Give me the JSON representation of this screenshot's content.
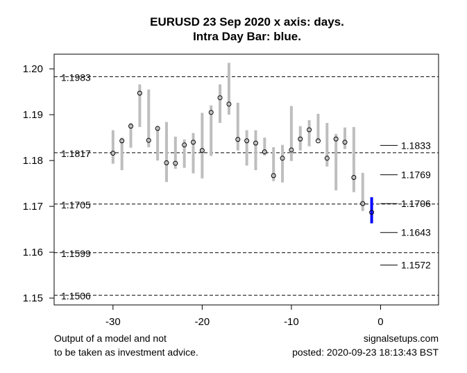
{
  "chart_data": {
    "type": "range-bar",
    "title_lines": [
      "EURUSD 23 Sep 2020 x axis: days.",
      "Intra Day Bar: blue."
    ],
    "xlabel": "",
    "ylabel": "",
    "xlim": [
      -36.6,
      6.5
    ],
    "ylim": [
      1.1485,
      1.2032
    ],
    "x_ticks": [
      -30,
      -20,
      -10,
      0
    ],
    "x_tick_labels": [
      "-30",
      "-20",
      "-10",
      "0"
    ],
    "y_ticks": [
      1.2,
      1.19,
      1.18,
      1.17,
      1.16,
      1.15
    ],
    "y_tick_labels": [
      "1.20",
      "1.19",
      "1.18",
      "1.17",
      "1.16",
      "1.15"
    ],
    "grid": false,
    "colors": {
      "daily_bar": "#bebebe",
      "intraday_bar": "#0000ff",
      "levels": "#000000"
    },
    "daily_bars": [
      {
        "day": -30,
        "high": 1.1866,
        "low": 1.1793,
        "close": 1.1816
      },
      {
        "day": -29,
        "high": 1.185,
        "low": 1.1779,
        "close": 1.1843
      },
      {
        "day": -28,
        "high": 1.1882,
        "low": 1.1828,
        "close": 1.1875
      },
      {
        "day": -27,
        "high": 1.1966,
        "low": 1.1873,
        "close": 1.1947
      },
      {
        "day": -26,
        "high": 1.1955,
        "low": 1.1829,
        "close": 1.1844
      },
      {
        "day": -25,
        "high": 1.1875,
        "low": 1.18,
        "close": 1.187
      },
      {
        "day": -24,
        "high": 1.1884,
        "low": 1.1753,
        "close": 1.1795
      },
      {
        "day": -23,
        "high": 1.1852,
        "low": 1.1782,
        "close": 1.1794
      },
      {
        "day": -22,
        "high": 1.1846,
        "low": 1.1784,
        "close": 1.1834
      },
      {
        "day": -21,
        "high": 1.186,
        "low": 1.1772,
        "close": 1.184
      },
      {
        "day": -20,
        "high": 1.1904,
        "low": 1.1761,
        "close": 1.1822
      },
      {
        "day": -19,
        "high": 1.192,
        "low": 1.181,
        "close": 1.1905
      },
      {
        "day": -18,
        "high": 1.1966,
        "low": 1.1882,
        "close": 1.1937
      },
      {
        "day": -17,
        "high": 1.2013,
        "low": 1.19,
        "close": 1.1923
      },
      {
        "day": -16,
        "high": 1.1926,
        "low": 1.1822,
        "close": 1.1846
      },
      {
        "day": -15,
        "high": 1.1866,
        "low": 1.1789,
        "close": 1.1843
      },
      {
        "day": -14,
        "high": 1.1866,
        "low": 1.1779,
        "close": 1.1838
      },
      {
        "day": -13,
        "high": 1.185,
        "low": 1.1811,
        "close": 1.1819
      },
      {
        "day": -12,
        "high": 1.1829,
        "low": 1.1755,
        "close": 1.1767
      },
      {
        "day": -11,
        "high": 1.1834,
        "low": 1.1752,
        "close": 1.1805
      },
      {
        "day": -10,
        "high": 1.1919,
        "low": 1.1799,
        "close": 1.1823
      },
      {
        "day": -9,
        "high": 1.1875,
        "low": 1.1822,
        "close": 1.1847
      },
      {
        "day": -8,
        "high": 1.1888,
        "low": 1.1831,
        "close": 1.1867
      },
      {
        "day": -7,
        "high": 1.1902,
        "low": 1.1843,
        "close": 1.1843
      },
      {
        "day": -6,
        "high": 1.1882,
        "low": 1.1787,
        "close": 1.1805
      },
      {
        "day": -5,
        "high": 1.1858,
        "low": 1.1735,
        "close": 1.1847
      },
      {
        "day": -4,
        "high": 1.1872,
        "low": 1.1825,
        "close": 1.184
      },
      {
        "day": -3,
        "high": 1.1873,
        "low": 1.1731,
        "close": 1.1763
      },
      {
        "day": -2,
        "high": 1.1773,
        "low": 1.169,
        "close": 1.1706
      }
    ],
    "intraday_bar": {
      "day": -1,
      "high": 1.172,
      "low": 1.1663,
      "close": 1.1687
    },
    "historical_levels": [
      {
        "value": 1.1983,
        "label": "1.1983"
      },
      {
        "value": 1.1817,
        "label": "1.1817"
      },
      {
        "value": 1.1705,
        "label": "1.1705"
      },
      {
        "value": 1.1599,
        "label": "1.1599"
      },
      {
        "value": 1.1506,
        "label": "1.1506"
      }
    ],
    "projected_levels": [
      {
        "value": 1.1833,
        "label": "1.1833"
      },
      {
        "value": 1.1769,
        "label": "1.1769"
      },
      {
        "value": 1.1706,
        "label": "1.1706"
      },
      {
        "value": 1.1643,
        "label": "1.1643"
      },
      {
        "value": 1.1572,
        "label": "1.1572"
      }
    ]
  },
  "footer": {
    "disclaimer_line1": "Output of a model and not",
    "disclaimer_line2": "to be taken as investment advice.",
    "site": "signalsetups.com",
    "posted": "posted: 2020-09-23 18:13:43 BST"
  }
}
